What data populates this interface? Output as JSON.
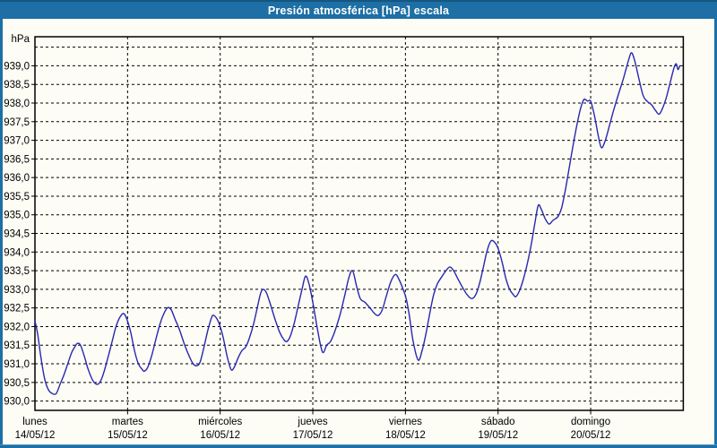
{
  "window": {
    "title": "Presión atmosférica [hPa] escala"
  },
  "colors": {
    "frame": "#1d6fa5",
    "titlebar_bg": "#1d6fa5",
    "titlebar_text": "#ffffff",
    "chart_bg": "#fdfdf6",
    "grid": "#000000",
    "axis_border": "#000000",
    "series_line": "#2727b0",
    "label_text": "#000000"
  },
  "y_axis": {
    "unit": "hPa",
    "tick_labels": [
      "939,0",
      "938,5",
      "938,0",
      "937,5",
      "937,0",
      "936,5",
      "936,0",
      "935,5",
      "935,0",
      "934,5",
      "934,0",
      "933,5",
      "933,0",
      "932,5",
      "932,0",
      "931,5",
      "931,0",
      "930,5",
      "930,0"
    ],
    "tick_values": [
      939.0,
      938.5,
      938.0,
      937.5,
      937.0,
      936.5,
      936.0,
      935.5,
      935.0,
      934.5,
      934.0,
      933.5,
      933.0,
      932.5,
      932.0,
      931.5,
      931.0,
      930.5,
      930.0
    ],
    "gridline_values": [
      939.5,
      939.0,
      938.5,
      938.0,
      937.5,
      937.0,
      936.5,
      936.0,
      935.5,
      935.0,
      934.5,
      934.0,
      933.5,
      933.0,
      932.5,
      932.0,
      931.5,
      931.0,
      930.5,
      930.0
    ]
  },
  "x_axis": {
    "days": [
      {
        "name": "lunes",
        "date": "14/05/12"
      },
      {
        "name": "martes",
        "date": "15/05/12"
      },
      {
        "name": "miércoles",
        "date": "16/05/12"
      },
      {
        "name": "jueves",
        "date": "17/05/12"
      },
      {
        "name": "viernes",
        "date": "18/05/12"
      },
      {
        "name": "sábado",
        "date": "19/05/12"
      },
      {
        "name": "domingo",
        "date": "20/05/12"
      }
    ],
    "hours_per_day": 24
  },
  "chart_data": {
    "type": "line",
    "title": "Presión atmosférica [hPa] escala",
    "xlabel": "",
    "ylabel": "hPa",
    "ylim": [
      929.75,
      939.78
    ],
    "xlim_hours": [
      0,
      168
    ],
    "grid": true,
    "legend_position": "none",
    "x_unit": "hours since lunes 14/05/12 00:00",
    "series": [
      {
        "name": "Presión atmosférica [hPa]",
        "points": [
          [
            0,
            932.15
          ],
          [
            0.7,
            931.8
          ],
          [
            1.5,
            931.2
          ],
          [
            2.5,
            930.6
          ],
          [
            3.5,
            930.3
          ],
          [
            4.5,
            930.2
          ],
          [
            5.5,
            930.2
          ],
          [
            6.5,
            930.45
          ],
          [
            7.5,
            930.7
          ],
          [
            8.5,
            931.0
          ],
          [
            9.5,
            931.3
          ],
          [
            10.3,
            931.45
          ],
          [
            11,
            931.55
          ],
          [
            11.8,
            931.5
          ],
          [
            12.8,
            931.2
          ],
          [
            13.8,
            930.85
          ],
          [
            15,
            930.55
          ],
          [
            16,
            930.45
          ],
          [
            16.8,
            930.5
          ],
          [
            17.8,
            930.75
          ],
          [
            19,
            931.2
          ],
          [
            20,
            931.6
          ],
          [
            21,
            932.0
          ],
          [
            22,
            932.25
          ],
          [
            23,
            932.35
          ],
          [
            23.8,
            932.2
          ],
          [
            24.8,
            931.85
          ],
          [
            25.8,
            931.35
          ],
          [
            26.8,
            931.0
          ],
          [
            27.8,
            930.85
          ],
          [
            28.3,
            930.8
          ],
          [
            29.2,
            930.9
          ],
          [
            30.2,
            931.2
          ],
          [
            31.2,
            931.6
          ],
          [
            32.2,
            932.0
          ],
          [
            33.2,
            932.3
          ],
          [
            34.3,
            932.5
          ],
          [
            35.3,
            932.45
          ],
          [
            36.3,
            932.2
          ],
          [
            37.5,
            931.9
          ],
          [
            38.8,
            931.5
          ],
          [
            40,
            931.2
          ],
          [
            41,
            931.0
          ],
          [
            42,
            930.95
          ],
          [
            42.8,
            931.05
          ],
          [
            43.8,
            931.45
          ],
          [
            44.8,
            931.9
          ],
          [
            45.8,
            932.25
          ],
          [
            46.3,
            932.3
          ],
          [
            47.2,
            932.2
          ],
          [
            48,
            932.0
          ],
          [
            48.8,
            931.7
          ],
          [
            49.8,
            931.2
          ],
          [
            50.8,
            930.85
          ],
          [
            51.6,
            930.9
          ],
          [
            52.6,
            931.15
          ],
          [
            53.6,
            931.35
          ],
          [
            54.6,
            931.45
          ],
          [
            55.6,
            931.7
          ],
          [
            56.6,
            932.05
          ],
          [
            57.6,
            932.5
          ],
          [
            58.5,
            932.9
          ],
          [
            59.2,
            933.0
          ],
          [
            60,
            932.9
          ],
          [
            61,
            932.6
          ],
          [
            62.2,
            932.2
          ],
          [
            63.4,
            931.85
          ],
          [
            64.5,
            931.65
          ],
          [
            65.3,
            931.6
          ],
          [
            66.2,
            931.75
          ],
          [
            67.2,
            932.1
          ],
          [
            68.2,
            932.55
          ],
          [
            69.2,
            933.0
          ],
          [
            70.1,
            933.35
          ],
          [
            71,
            933.15
          ],
          [
            72,
            932.65
          ],
          [
            73,
            932.05
          ],
          [
            74,
            931.5
          ],
          [
            74.7,
            931.3
          ],
          [
            75.6,
            931.5
          ],
          [
            76.6,
            931.6
          ],
          [
            77.8,
            931.9
          ],
          [
            79,
            932.3
          ],
          [
            80.2,
            932.8
          ],
          [
            81.3,
            933.3
          ],
          [
            82.3,
            933.5
          ],
          [
            83.3,
            933.1
          ],
          [
            84.3,
            932.75
          ],
          [
            85.5,
            932.65
          ],
          [
            86.8,
            932.5
          ],
          [
            88,
            932.35
          ],
          [
            89,
            932.3
          ],
          [
            90,
            932.45
          ],
          [
            91,
            932.8
          ],
          [
            92.2,
            933.2
          ],
          [
            93.4,
            933.4
          ],
          [
            94.4,
            933.25
          ],
          [
            95.4,
            933.0
          ],
          [
            96.2,
            932.75
          ],
          [
            97,
            932.3
          ],
          [
            98,
            931.6
          ],
          [
            99.3,
            931.1
          ],
          [
            100.3,
            931.35
          ],
          [
            101.3,
            931.8
          ],
          [
            102.3,
            932.35
          ],
          [
            103.3,
            932.85
          ],
          [
            104.3,
            933.15
          ],
          [
            105.5,
            933.35
          ],
          [
            106.5,
            933.5
          ],
          [
            107.5,
            933.6
          ],
          [
            108.5,
            933.5
          ],
          [
            109.5,
            933.3
          ],
          [
            110.8,
            933.05
          ],
          [
            112,
            932.85
          ],
          [
            113.2,
            932.75
          ],
          [
            114.2,
            932.85
          ],
          [
            115.2,
            933.15
          ],
          [
            116.2,
            933.6
          ],
          [
            117.2,
            934.05
          ],
          [
            118.2,
            934.3
          ],
          [
            119.2,
            934.25
          ],
          [
            120,
            934.1
          ],
          [
            121,
            933.75
          ],
          [
            122,
            933.3
          ],
          [
            123,
            933.0
          ],
          [
            124,
            932.85
          ],
          [
            124.6,
            932.8
          ],
          [
            125.5,
            932.95
          ],
          [
            126.5,
            933.25
          ],
          [
            127.5,
            933.65
          ],
          [
            128.5,
            934.15
          ],
          [
            129.5,
            934.75
          ],
          [
            130.4,
            935.25
          ],
          [
            131.2,
            935.15
          ],
          [
            132.2,
            934.9
          ],
          [
            133.2,
            934.75
          ],
          [
            134.2,
            934.85
          ],
          [
            135.5,
            934.95
          ],
          [
            136.5,
            935.2
          ],
          [
            137.5,
            935.7
          ],
          [
            138.5,
            936.3
          ],
          [
            139.5,
            936.9
          ],
          [
            140.5,
            937.45
          ],
          [
            141.5,
            937.9
          ],
          [
            142.3,
            938.1
          ],
          [
            143.2,
            938.05
          ],
          [
            144,
            938.05
          ],
          [
            145,
            937.65
          ],
          [
            146,
            937.1
          ],
          [
            146.8,
            936.8
          ],
          [
            147.8,
            937.0
          ],
          [
            149,
            937.45
          ],
          [
            150.2,
            937.9
          ],
          [
            151.4,
            938.3
          ],
          [
            152.6,
            938.7
          ],
          [
            153.8,
            939.15
          ],
          [
            154.6,
            939.35
          ],
          [
            155.5,
            939.1
          ],
          [
            156.5,
            938.65
          ],
          [
            157.6,
            938.2
          ],
          [
            158.6,
            938.05
          ],
          [
            159.8,
            937.95
          ],
          [
            160.8,
            937.8
          ],
          [
            161.7,
            937.7
          ],
          [
            162.6,
            937.85
          ],
          [
            163.6,
            938.15
          ],
          [
            164.6,
            938.55
          ],
          [
            165.6,
            938.95
          ],
          [
            166.2,
            939.05
          ],
          [
            166.6,
            938.9
          ],
          [
            167.1,
            939.0
          ]
        ]
      }
    ]
  }
}
